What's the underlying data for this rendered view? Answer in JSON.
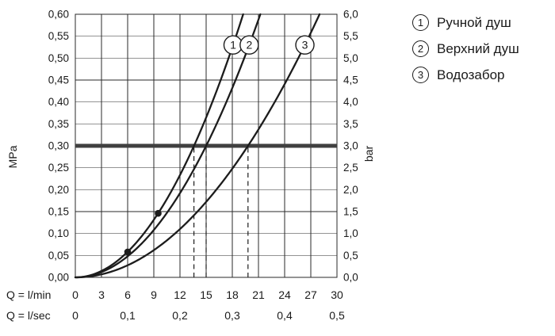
{
  "chart_data": {
    "type": "line",
    "x_axis_lmin": {
      "label": "Q = l/min",
      "ticks": [
        0,
        3,
        6,
        9,
        12,
        15,
        18,
        21,
        24,
        27,
        30
      ],
      "range": [
        0,
        30
      ]
    },
    "x_axis_lsec": {
      "label": "Q = l/sec",
      "ticks": [
        "0",
        "0,1",
        "0,2",
        "0,3",
        "0,4",
        "0,5"
      ],
      "range": [
        0,
        0.5
      ]
    },
    "y_axis_left": {
      "label": "MPa",
      "ticks": [
        "0,00",
        "0,05",
        "0,10",
        "0,15",
        "0,20",
        "0,25",
        "0,30",
        "0,35",
        "0,40",
        "0,45",
        "0,50",
        "0,55",
        "0,60"
      ],
      "range": [
        0,
        0.6
      ]
    },
    "y_axis_right": {
      "label": "bar",
      "ticks": [
        "0,0",
        "0,5",
        "1,0",
        "1,5",
        "2,0",
        "2,5",
        "3,0",
        "3,5",
        "4,0",
        "4,5",
        "5,0",
        "5,5",
        "6,0"
      ],
      "range": [
        0,
        6
      ]
    },
    "grid": true,
    "legend_position": "right",
    "reference_line_bar": 3.0,
    "dashed_lines_lmin": [
      13.6,
      15.0,
      19.8
    ],
    "dots_lmin_bar": [
      [
        6,
        0.58
      ],
      [
        9.5,
        1.46
      ]
    ],
    "series": [
      {
        "marker": "1",
        "name": "Ручной душ",
        "model": {
          "k": 0.0162,
          "exp": 2
        },
        "flow_at_3bar_lmin": 13.6,
        "label_bar": 5.3,
        "points_lmin_bar": [
          [
            0,
            0
          ],
          [
            3,
            0.15
          ],
          [
            6,
            0.58
          ],
          [
            9,
            1.31
          ],
          [
            12,
            2.33
          ],
          [
            13.6,
            3.0
          ],
          [
            15,
            3.65
          ],
          [
            18,
            5.25
          ],
          [
            19.2,
            6.0
          ]
        ]
      },
      {
        "marker": "2",
        "name": "Верхний душ",
        "model": {
          "k": 0.01333,
          "exp": 2
        },
        "flow_at_3bar_lmin": 15.0,
        "label_bar": 5.3,
        "points_lmin_bar": [
          [
            0,
            0
          ],
          [
            3,
            0.12
          ],
          [
            6,
            0.48
          ],
          [
            9,
            1.08
          ],
          [
            12,
            1.92
          ],
          [
            15,
            3.0
          ],
          [
            18,
            4.32
          ],
          [
            21,
            5.88
          ],
          [
            21.2,
            6.0
          ]
        ]
      },
      {
        "marker": "3",
        "name": "Водозабор",
        "model": {
          "k": 0.00765,
          "exp": 2
        },
        "flow_at_3bar_lmin": 19.8,
        "label_bar": 5.3,
        "points_lmin_bar": [
          [
            0,
            0
          ],
          [
            3,
            0.07
          ],
          [
            6,
            0.28
          ],
          [
            9,
            0.62
          ],
          [
            12,
            1.1
          ],
          [
            15,
            1.72
          ],
          [
            18,
            2.48
          ],
          [
            19.8,
            3.0
          ],
          [
            24,
            4.41
          ],
          [
            27,
            5.58
          ],
          [
            28,
            6.0
          ]
        ]
      }
    ],
    "style": {
      "text_color": "#1a1a1a",
      "grid_color": "#2a2a2a",
      "curve_color": "#1c1c1c",
      "reference_line_color": "#404040",
      "background": "#ffffff"
    }
  },
  "legend": {
    "items": [
      {
        "marker": "1",
        "label": "Ручной душ"
      },
      {
        "marker": "2",
        "label": "Верхний душ"
      },
      {
        "marker": "3",
        "label": "Водозабор"
      }
    ]
  }
}
